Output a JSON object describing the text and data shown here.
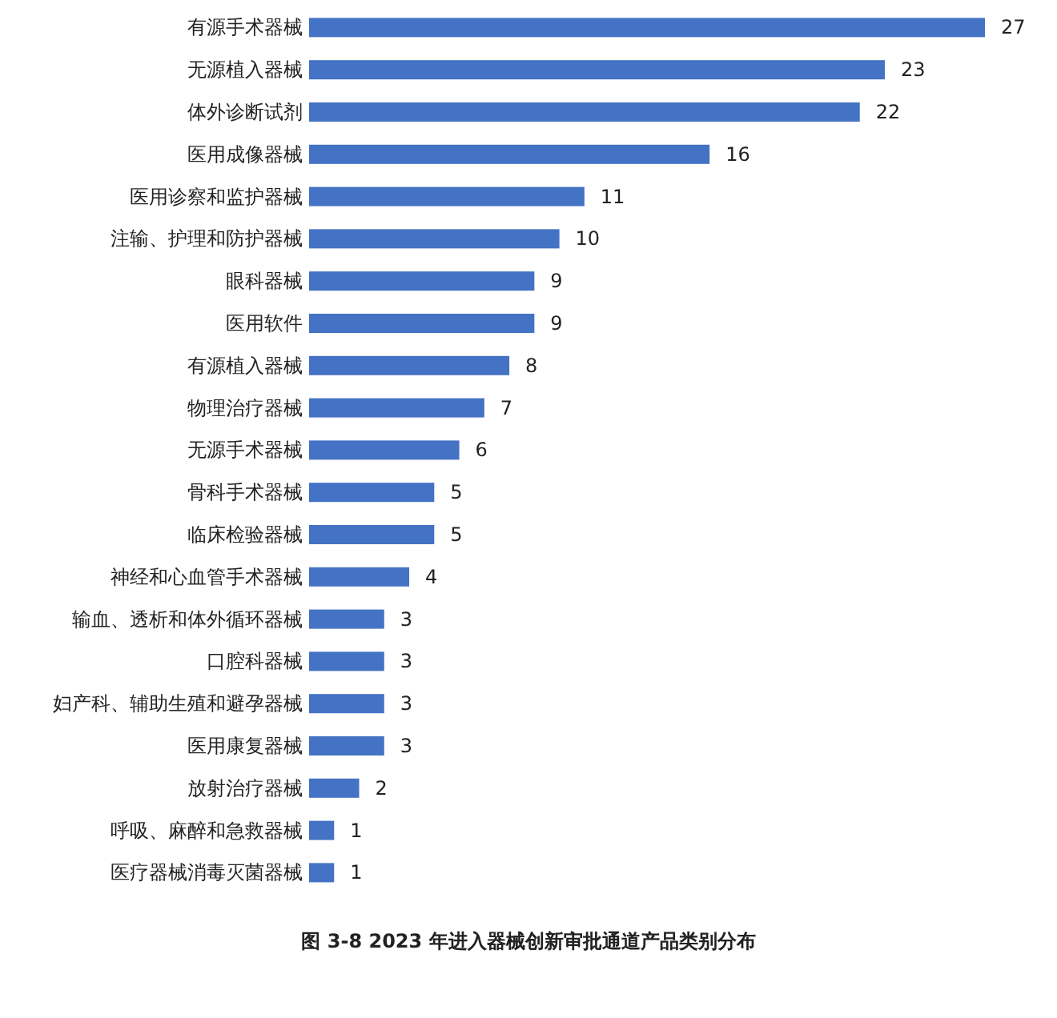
{
  "chart_data": {
    "type": "bar",
    "orientation": "horizontal",
    "title": "图 3-8 2023 年进入器械创新审批通道产品类别分布",
    "categories": [
      "有源手术器械",
      "无源植入器械",
      "体外诊断试剂",
      "医用成像器械",
      "医用诊察和监护器械",
      "注输、护理和防护器械",
      "眼科器械",
      "医用软件",
      "有源植入器械",
      "物理治疗器械",
      "无源手术器械",
      "骨科手术器械",
      "临床检验器械",
      "神经和心血管手术器械",
      "输血、透析和体外循环器械",
      "口腔科器械",
      "妇产科、辅助生殖和避孕器械",
      "医用康复器械",
      "放射治疗器械",
      "呼吸、麻醉和急救器械",
      "医疗器械消毒灭菌器械"
    ],
    "values": [
      27,
      23,
      22,
      16,
      11,
      10,
      9,
      9,
      8,
      7,
      6,
      5,
      5,
      4,
      3,
      3,
      3,
      3,
      2,
      1,
      1
    ],
    "color": "#4472c4",
    "data_labels": true
  }
}
